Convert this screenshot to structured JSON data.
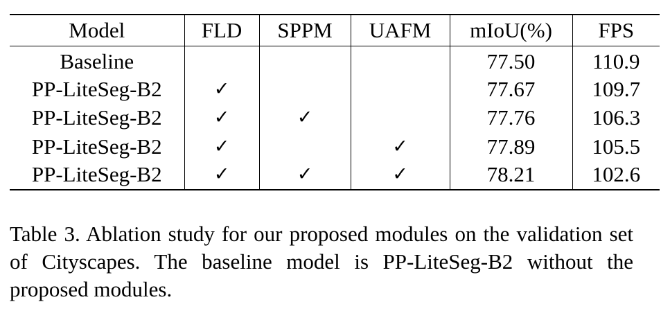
{
  "table": {
    "columns": [
      "Model",
      "FLD",
      "SPPM",
      "UAFM",
      "mIoU(%)",
      "FPS"
    ],
    "check_glyph": "✓",
    "rows": [
      {
        "model": "Baseline",
        "fld": "",
        "sppm": "",
        "uafm": "",
        "miou": "77.50",
        "fps": "110.9"
      },
      {
        "model": "PP-LiteSeg-B2",
        "fld": "✓",
        "sppm": "",
        "uafm": "",
        "miou": "77.67",
        "fps": "109.7"
      },
      {
        "model": "PP-LiteSeg-B2",
        "fld": "✓",
        "sppm": "✓",
        "uafm": "",
        "miou": "77.76",
        "fps": "106.3"
      },
      {
        "model": "PP-LiteSeg-B2",
        "fld": "✓",
        "sppm": "",
        "uafm": "✓",
        "miou": "77.89",
        "fps": "105.5"
      },
      {
        "model": "PP-LiteSeg-B2",
        "fld": "✓",
        "sppm": "✓",
        "uafm": "✓",
        "miou": "78.21",
        "fps": "102.6"
      }
    ]
  },
  "caption": {
    "text": "Table 3.  Ablation study for our proposed modules on the validation set of Cityscapes.  The baseline model is PP-LiteSeg-B2 without the proposed modules."
  }
}
